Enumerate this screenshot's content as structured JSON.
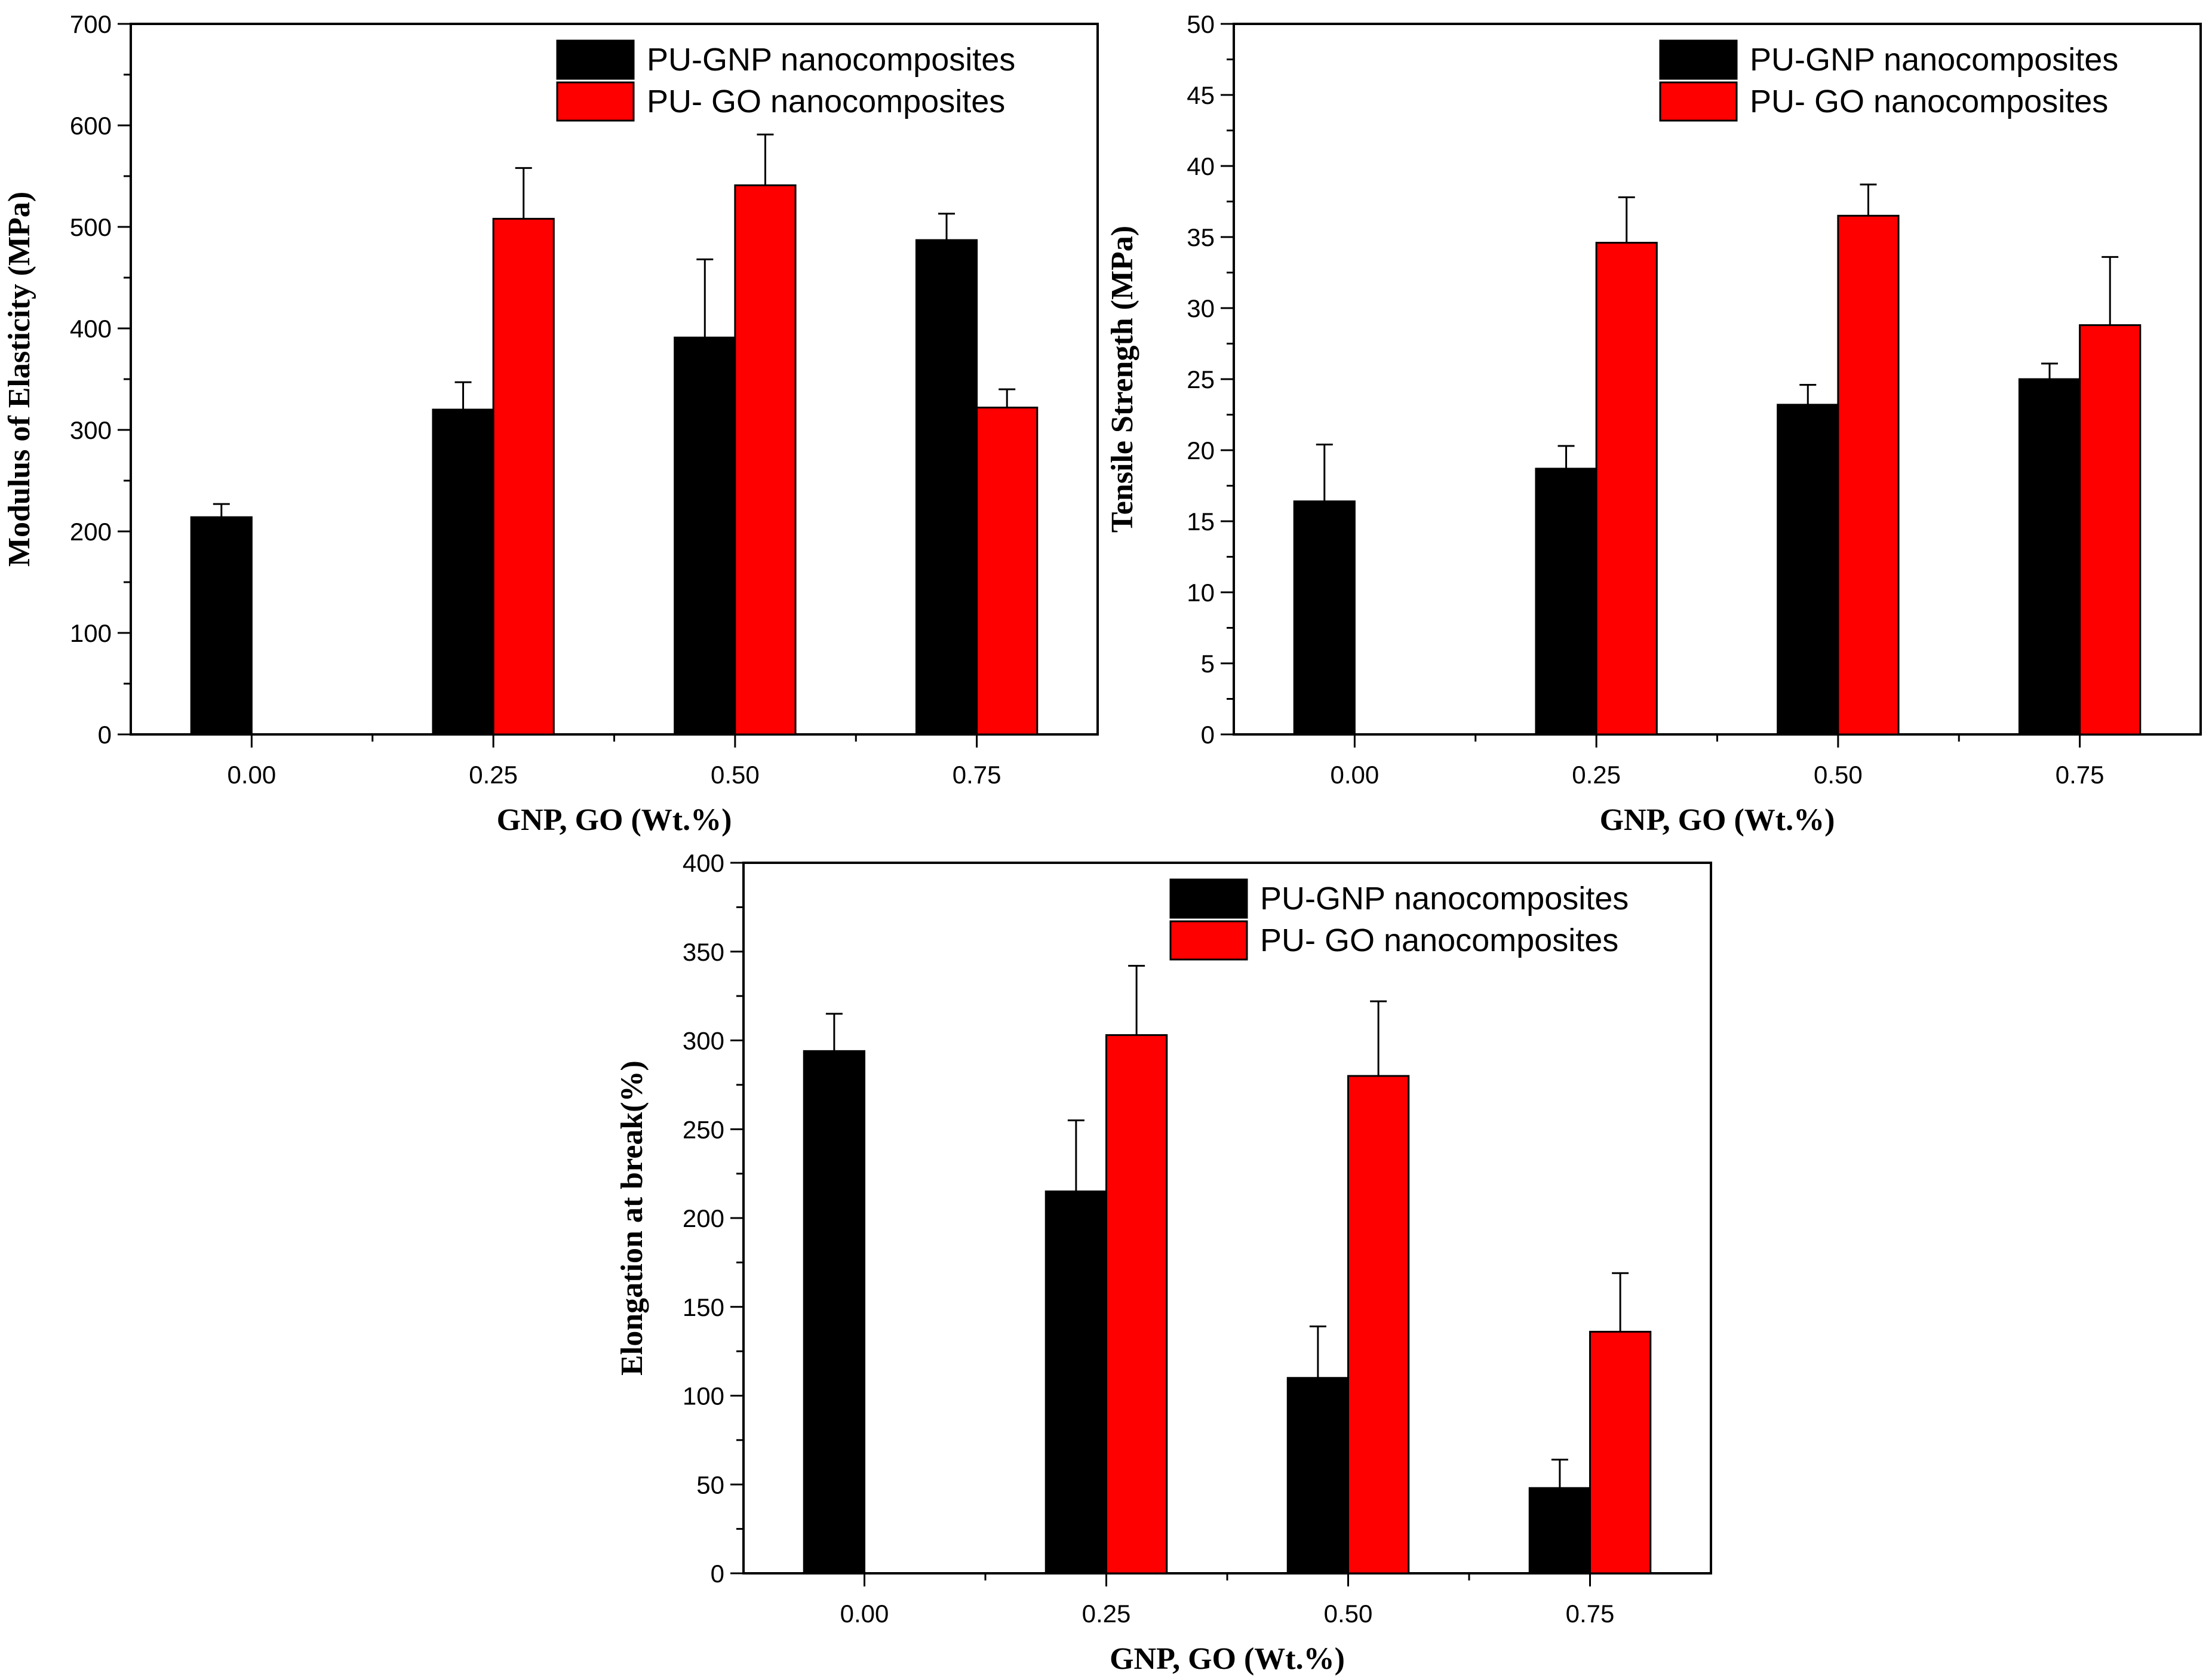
{
  "chart_data": [
    {
      "type": "bar",
      "title": "",
      "xlabel": "GNP, GO (Wt.%)",
      "ylabel": "Modulus of Elasticity (MPa)",
      "ylim": [
        0,
        700
      ],
      "yticks": [
        0,
        100,
        200,
        300,
        400,
        500,
        600,
        700
      ],
      "categories": [
        "0.00",
        "0.25",
        "0.50",
        "0.75"
      ],
      "legend_position": "top-right",
      "series": [
        {
          "name": "PU-GNP nanocomposites",
          "color": "#000000",
          "values": [
            214,
            320,
            391,
            487
          ],
          "errors": [
            13,
            27,
            77,
            26
          ]
        },
        {
          "name": "PU- GO nanocomposites",
          "color": "#ff0000",
          "values": [
            null,
            508,
            541,
            322
          ],
          "errors": [
            null,
            50,
            50,
            18
          ]
        }
      ]
    },
    {
      "type": "bar",
      "title": "",
      "xlabel": "GNP, GO (Wt.%)",
      "ylabel": "Tensile Strength (MPa)",
      "ylim": [
        0,
        50
      ],
      "yticks": [
        0,
        5,
        10,
        15,
        20,
        25,
        30,
        35,
        40,
        45,
        50
      ],
      "categories": [
        "0.00",
        "0.25",
        "0.50",
        "0.75"
      ],
      "legend_position": "top-right",
      "series": [
        {
          "name": "PU-GNP nanocomposites",
          "color": "#000000",
          "values": [
            16.4,
            18.7,
            23.2,
            25.0
          ],
          "errors": [
            4.0,
            1.6,
            1.4,
            1.1
          ]
        },
        {
          "name": "PU- GO nanocomposites",
          "color": "#ff0000",
          "values": [
            null,
            34.6,
            36.5,
            28.8
          ],
          "errors": [
            null,
            3.2,
            2.2,
            4.8
          ]
        }
      ]
    },
    {
      "type": "bar",
      "title": "",
      "xlabel": "GNP, GO (Wt.%)",
      "ylabel": "Elongation at break(%)",
      "ylim": [
        0,
        400
      ],
      "yticks": [
        0,
        50,
        100,
        150,
        200,
        250,
        300,
        350,
        400
      ],
      "categories": [
        "0.00",
        "0.25",
        "0.50",
        "0.75"
      ],
      "legend_position": "top-right",
      "series": [
        {
          "name": "PU-GNP nanocomposites",
          "color": "#000000",
          "values": [
            294,
            215,
            110,
            48
          ],
          "errors": [
            21,
            40,
            29,
            16
          ]
        },
        {
          "name": "PU- GO nanocomposites",
          "color": "#ff0000",
          "values": [
            null,
            303,
            280,
            136
          ],
          "errors": [
            null,
            39,
            42,
            33
          ]
        }
      ]
    }
  ]
}
